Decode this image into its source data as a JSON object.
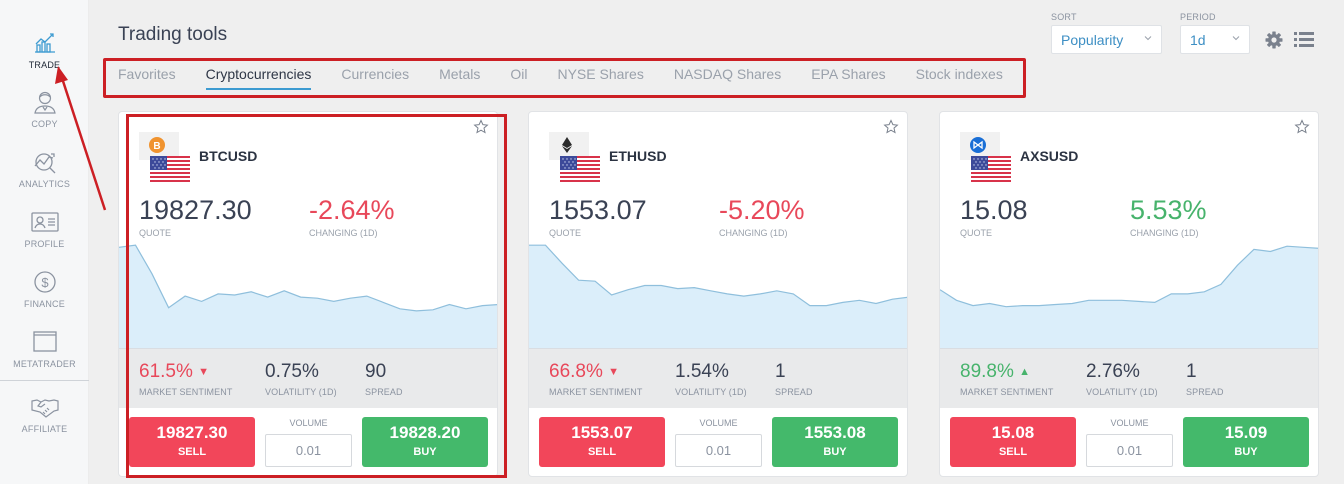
{
  "sidebar": {
    "items": [
      {
        "label": "TRADE",
        "icon": "trade-chart-icon",
        "active": true
      },
      {
        "label": "COPY",
        "icon": "copy-person-icon",
        "active": false
      },
      {
        "label": "ANALYTICS",
        "icon": "analytics-icon",
        "active": false
      },
      {
        "label": "PROFILE",
        "icon": "profile-card-icon",
        "active": false
      },
      {
        "label": "FINANCE",
        "icon": "dollar-icon",
        "active": false
      },
      {
        "label": "METATRADER",
        "icon": "window-icon",
        "active": false
      },
      {
        "label": "AFFILIATE",
        "icon": "handshake-icon",
        "active": false
      }
    ]
  },
  "header": {
    "title": "Trading tools",
    "tabs": [
      {
        "label": "Favorites",
        "active": false
      },
      {
        "label": "Cryptocurrencies",
        "active": true
      },
      {
        "label": "Currencies",
        "active": false
      },
      {
        "label": "Metals",
        "active": false
      },
      {
        "label": "Oil",
        "active": false
      },
      {
        "label": "NYSE Shares",
        "active": false
      },
      {
        "label": "NASDAQ Shares",
        "active": false
      },
      {
        "label": "EPA Shares",
        "active": false
      },
      {
        "label": "Stock indexes",
        "active": false
      }
    ],
    "sort": {
      "label": "SORT",
      "value": "Popularity"
    },
    "period": {
      "label": "PERIOD",
      "value": "1d"
    },
    "icons": [
      "gear-icon",
      "list-view-icon"
    ]
  },
  "cards": [
    {
      "symbol": "BTCUSD",
      "coin_icon": "bitcoin-icon",
      "coin_color": "#f0932f",
      "quote": "19827.30",
      "quote_label": "QUOTE",
      "change": "-2.64%",
      "change_label": "CHANGING (1D)",
      "change_color": "#e8485a",
      "sentiment": "61.5%",
      "sentiment_dir": "down",
      "sentiment_color": "#e8485a",
      "sentiment_label": "MARKET SENTIMENT",
      "volatility": "0.75%",
      "volatility_label": "VOLATILITY (1D)",
      "spread": "90",
      "spread_label": "SPREAD",
      "sell_price": "19827.30",
      "sell_label": "SELL",
      "buy_price": "19828.20",
      "buy_label": "BUY",
      "volume_label": "VOLUME",
      "volume_value": "0.01",
      "sparkline": [
        95,
        97,
        70,
        38,
        49,
        44,
        51,
        50,
        53,
        48,
        54,
        48,
        47,
        44,
        47,
        49,
        43,
        37,
        35,
        36,
        41,
        37,
        40,
        41
      ]
    },
    {
      "symbol": "ETHUSD",
      "coin_icon": "ethereum-icon",
      "coin_color": "#2b2b2b",
      "quote": "1553.07",
      "quote_label": "QUOTE",
      "change": "-5.20%",
      "change_label": "CHANGING (1D)",
      "change_color": "#e8485a",
      "sentiment": "66.8%",
      "sentiment_dir": "down",
      "sentiment_color": "#e8485a",
      "sentiment_label": "MARKET SENTIMENT",
      "volatility": "1.54%",
      "volatility_label": "VOLATILITY (1D)",
      "spread": "1",
      "spread_label": "SPREAD",
      "sell_price": "1553.07",
      "sell_label": "SELL",
      "buy_price": "1553.08",
      "buy_label": "BUY",
      "volume_label": "VOLUME",
      "volume_value": "0.01",
      "sparkline": [
        97,
        97,
        80,
        64,
        63,
        50,
        55,
        59,
        59,
        56,
        57,
        54,
        51,
        49,
        51,
        54,
        51,
        40,
        40,
        43,
        45,
        42,
        46,
        48
      ]
    },
    {
      "symbol": "AXSUSD",
      "coin_icon": "axie-icon",
      "coin_color": "#1a6fd6",
      "quote": "15.08",
      "quote_label": "QUOTE",
      "change": "5.53%",
      "change_label": "CHANGING (1D)",
      "change_color": "#47b36c",
      "sentiment": "89.8%",
      "sentiment_dir": "up",
      "sentiment_color": "#47b36c",
      "sentiment_label": "MARKET SENTIMENT",
      "volatility": "2.76%",
      "volatility_label": "VOLATILITY (1D)",
      "spread": "1",
      "spread_label": "SPREAD",
      "sell_price": "15.08",
      "sell_label": "SELL",
      "buy_price": "15.09",
      "buy_label": "BUY",
      "volume_label": "VOLUME",
      "volume_value": "0.01",
      "sparkline": [
        55,
        45,
        40,
        42,
        39,
        40,
        40,
        41,
        42,
        45,
        45,
        45,
        44,
        43,
        51,
        51,
        53,
        60,
        78,
        93,
        91,
        96,
        95,
        94
      ]
    }
  ],
  "colors": {
    "sell": "#f2465a",
    "buy": "#44b96b",
    "accent": "#3d9bd1",
    "annotation_red": "#cc1f24"
  }
}
